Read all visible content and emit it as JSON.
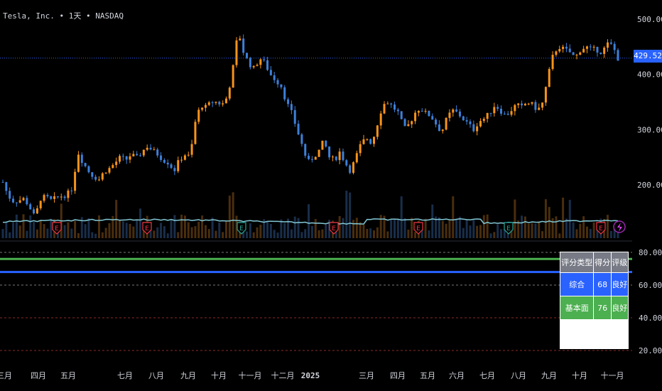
{
  "header": {
    "title": "Tesla, Inc. • 1天 • NASDAQ"
  },
  "colors": {
    "up": "#f7931a",
    "down": "#3d7fd8",
    "last_price": "#2962ff",
    "ma": "#81c7d4",
    "green_line": "#4caf50",
    "blue_line": "#2962ff"
  },
  "price_axis": {
    "ticks": [
      "500.00",
      "400.00",
      "300.00",
      "200.00"
    ],
    "last": "429.52"
  },
  "score_axis": {
    "ticks": [
      "80.00",
      "60.00",
      "40.00",
      "20.00"
    ]
  },
  "time_axis": {
    "labels": [
      "三月",
      "四月",
      "五月",
      "七月",
      "八月",
      "九月",
      "十月",
      "十一月",
      "十二月",
      "2025",
      "三月",
      "四月",
      "五月",
      "六月",
      "七月",
      "八月",
      "九月",
      "十月",
      "十一月"
    ]
  },
  "score_table": {
    "headers": [
      "评分类型",
      "得分",
      "评级"
    ],
    "rows": [
      {
        "type": "综合",
        "score": "68",
        "rating": "良好"
      },
      {
        "type": "基本面",
        "score": "76",
        "rating": "良好"
      }
    ]
  },
  "earnings_markers": [
    "E",
    "E",
    "E",
    "E",
    "E",
    "E",
    "E",
    "E"
  ],
  "chart_data": [
    {
      "type": "candlestick",
      "title": "Tesla, Inc. • 1天 • NASDAQ",
      "ylim": [
        120,
        520
      ],
      "last_price": 429.52,
      "x_labels": [
        "三月",
        "四月",
        "五月",
        "七月",
        "八月",
        "九月",
        "十月",
        "十一月",
        "十二月",
        "2025",
        "三月",
        "四月",
        "五月",
        "六月",
        "七月",
        "八月",
        "九月",
        "十月",
        "十一月"
      ],
      "price_path": [
        205,
        180,
        170,
        172,
        175,
        160,
        140,
        175,
        178,
        172,
        176,
        180,
        182,
        195,
        260,
        240,
        225,
        215,
        210,
        225,
        230,
        240,
        250,
        245,
        255,
        248,
        260,
        270,
        262,
        255,
        245,
        240,
        225,
        245,
        255,
        250,
        315,
        345,
        340,
        350,
        350,
        345,
        360,
        410,
        480,
        440,
        420,
        410,
        430,
        420,
        400,
        390,
        380,
        350,
        330,
        300,
        270,
        240,
        250,
        260,
        280,
        250,
        245,
        260,
        240,
        225,
        250,
        275,
        285,
        275,
        310,
        345,
        350,
        340,
        330,
        300,
        310,
        330,
        340,
        330,
        325,
        310,
        295,
        320,
        335,
        330,
        320,
        310,
        300,
        315,
        320,
        330,
        345,
        335,
        325,
        335,
        345,
        340,
        350,
        345,
        335,
        350,
        400,
        440,
        450,
        445,
        440,
        430,
        445,
        450,
        445,
        445,
        440,
        455,
        452,
        429
      ]
    },
    {
      "type": "line",
      "series": [
        {
          "name": "综合",
          "values": [
            68
          ]
        },
        {
          "name": "基本面",
          "values": [
            76
          ]
        }
      ],
      "ylim": [
        20,
        85
      ]
    }
  ]
}
